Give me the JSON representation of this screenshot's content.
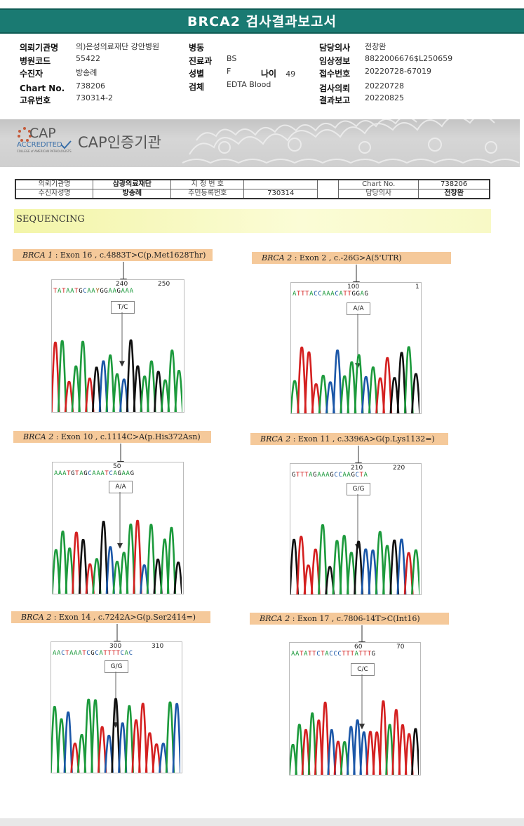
{
  "report": {
    "title": "BRCA2 검사결과보고서"
  },
  "header": {
    "col1": [
      {
        "label": "의뢰기관명",
        "value": "의)은성의료재단 강안병원"
      },
      {
        "label": "병원코드",
        "value": "55422"
      },
      {
        "label": "수진자",
        "value": "방송례"
      },
      {
        "label": "Chart No.",
        "value": "738206"
      },
      {
        "label": "고유번호",
        "value": "730314-2"
      }
    ],
    "col2": [
      {
        "label": "병동",
        "value": ""
      },
      {
        "label": "진료과",
        "value": "BS"
      },
      {
        "label": "성별",
        "value": "F"
      },
      {
        "label": "검체",
        "value": "EDTA Blood"
      }
    ],
    "age": {
      "label": "나이",
      "value": "49"
    },
    "col3": [
      {
        "label": "담당의사",
        "value": "전창완"
      },
      {
        "label": "임상정보",
        "value": "8822006676$L250659"
      },
      {
        "label": "접수번호",
        "value": "20220728-67019"
      },
      {
        "label": "검사의뢰",
        "value": "20220728"
      },
      {
        "label": "결과보고",
        "value": "20220825"
      }
    ]
  },
  "cap": {
    "logo_main": "CAP",
    "logo_sub": "ACCREDITED",
    "logo_tiny": "COLLEGE of AMERICAN PATHOLOGISTS",
    "label": "CAP인증기관"
  },
  "patient_table": {
    "institution_label": "의뢰기관명",
    "institution_value": "삼광의료재단",
    "id_label": "지 정 번 호",
    "name_label": "수신자성명",
    "name_value": "방송례",
    "rrn_label": "주민등록번호",
    "rrn_value": "730314",
    "chart_label": "Chart No.",
    "chart_value": "738206",
    "doctor_label": "담당의사",
    "doctor_value": "전창완"
  },
  "section": {
    "label": "SEQUENCING"
  },
  "variants": [
    {
      "gene": "BRCA 1",
      "desc": " : Exon 16 , c.4883T>C(p.Met1628Thr)",
      "bases": "TATAATGCAAYGGAAGAAA",
      "pos_a": "240",
      "pos_b": "250",
      "genotype": "T/C"
    },
    {
      "gene": "BRCA 2",
      "desc": " : Exon 2 , c.-26G>A(5'UTR)",
      "bases": "ATTTACCAAACATTGGAG",
      "pos_a": "100",
      "pos_b": "1",
      "genotype": "A/A"
    },
    {
      "gene": "BRCA 2",
      "desc": " : Exon 10 , c.1114C>A(p.His372Asn)",
      "bases": "AAATGTAGCAAATCAGAAG",
      "pos_a": "50",
      "pos_b": "",
      "genotype": "A/A"
    },
    {
      "gene": "BRCA 2",
      "desc": " : Exon 11 , c.3396A>G(p.Lys1132=)",
      "bases": "GTTTAGAAAGCCAAGCTA",
      "pos_a": "210",
      "pos_b": "220",
      "genotype": "G/G"
    },
    {
      "gene": "BRCA 2",
      "desc": " : Exon 14 , c.7242A>G(p.Ser2414=)",
      "bases": "AACTAAATCGCATTTTCAC",
      "pos_a": "300",
      "pos_b": "310",
      "genotype": "G/G"
    },
    {
      "gene": "BRCA 2",
      "desc": " : Exon 17 , c.7806-14T>C(Int16)",
      "bases": "AATATTCTACCCTTTATTTG",
      "pos_a": "60",
      "pos_b": "70",
      "genotype": "C/C"
    }
  ],
  "trace_colors": {
    "A": "#1c9a3c",
    "C": "#1b57a8",
    "G": "#111111",
    "T": "#d42020"
  }
}
